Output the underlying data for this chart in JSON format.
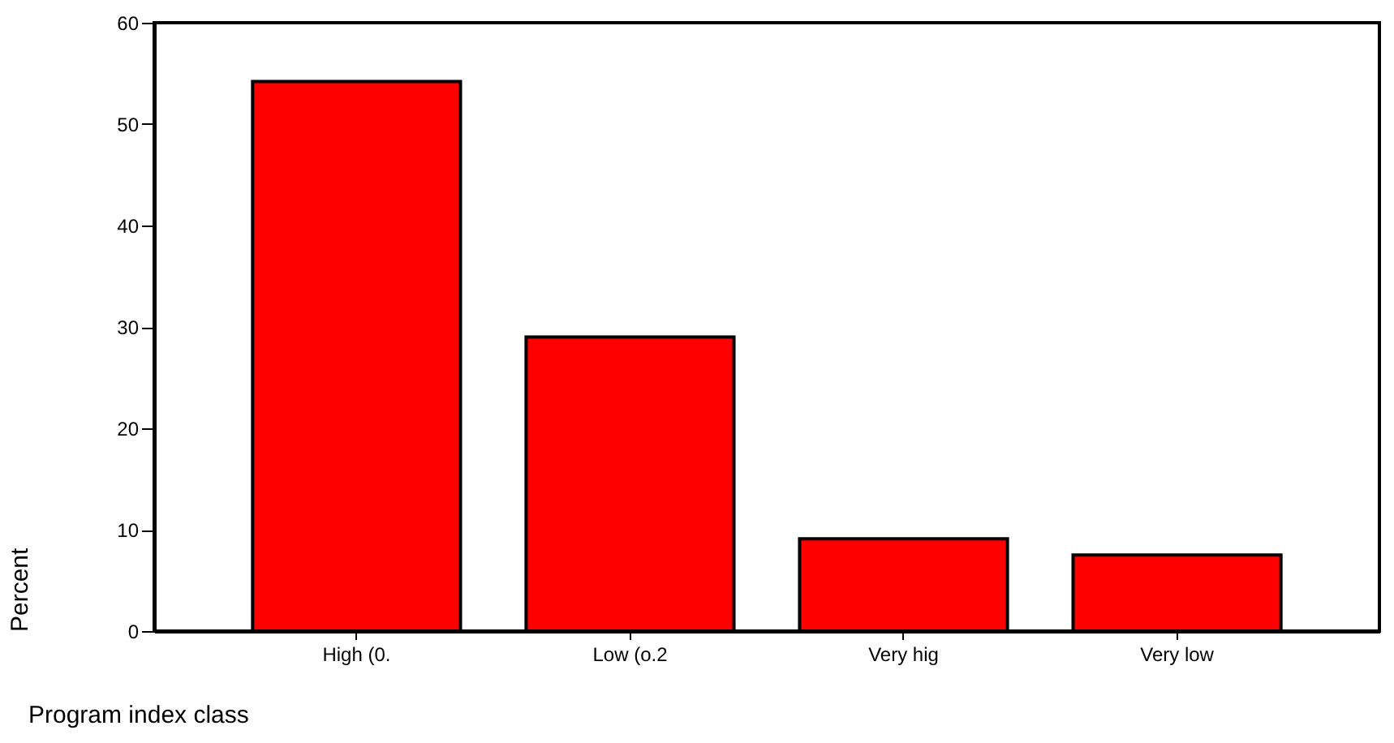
{
  "chart_data": {
    "type": "bar",
    "xlabel": "Program index class",
    "ylabel": "Percent",
    "categories": [
      "High (0.",
      "Low (o.2",
      "Very hig",
      "Very low"
    ],
    "values": [
      54.2,
      29.0,
      9.1,
      7.5
    ],
    "color": "#ff0000",
    "ylim": [
      0,
      60
    ],
    "yticks": [
      0,
      10,
      20,
      30,
      40,
      50,
      60
    ],
    "grid": false
  }
}
